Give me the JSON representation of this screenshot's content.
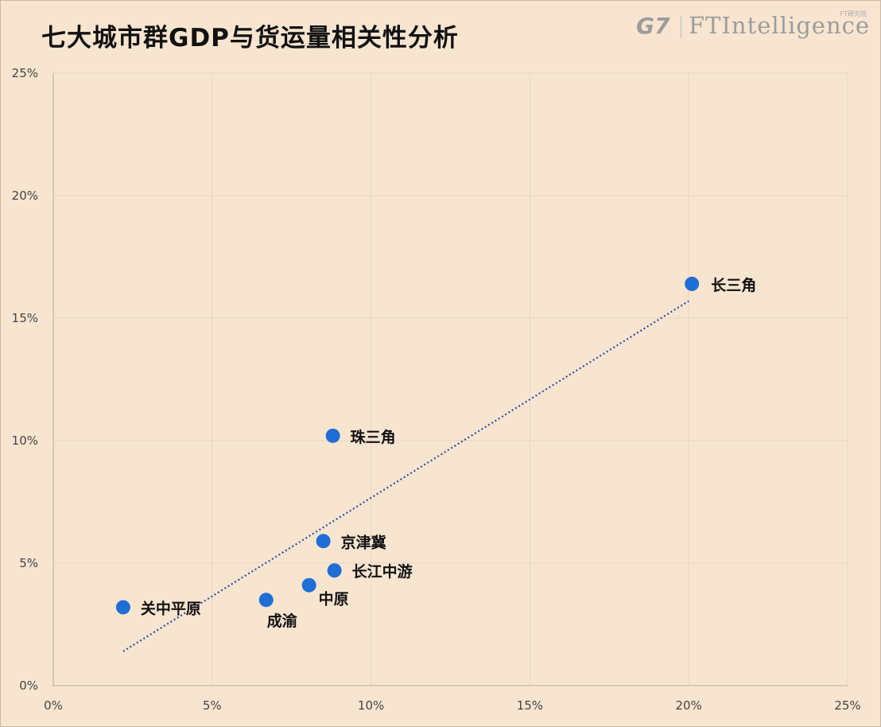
{
  "header": {
    "title": "七大城市群GDP与货运量相关性分析"
  },
  "brand": {
    "g7": "G7",
    "ft": "FTIntelligence",
    "cn": "FT研究院"
  },
  "chart_data": {
    "type": "scatter",
    "title": "七大城市群GDP与货运量相关性分析",
    "xlabel": "",
    "ylabel": "",
    "xlim": [
      0,
      25
    ],
    "ylim": [
      0,
      25
    ],
    "x_ticks": [
      "0%",
      "5%",
      "10%",
      "15%",
      "20%",
      "25%"
    ],
    "y_ticks": [
      "0%",
      "5%",
      "10%",
      "15%",
      "20%",
      "25%"
    ],
    "grid": true,
    "point_color": "#1f6ed6",
    "trendline_color": "#2a4fa8",
    "points": [
      {
        "label": "长三角",
        "x": 20.1,
        "y": 16.4
      },
      {
        "label": "珠三角",
        "x": 8.8,
        "y": 10.2
      },
      {
        "label": "京津冀",
        "x": 8.5,
        "y": 5.9
      },
      {
        "label": "长江中游",
        "x": 8.85,
        "y": 4.7
      },
      {
        "label": "中原",
        "x": 8.05,
        "y": 4.1
      },
      {
        "label": "成渝",
        "x": 6.7,
        "y": 3.5
      },
      {
        "label": "关中平原",
        "x": 2.2,
        "y": 3.2
      }
    ],
    "trendline": {
      "x": [
        2.2,
        20.0
      ],
      "y": [
        1.4,
        15.7
      ]
    }
  }
}
